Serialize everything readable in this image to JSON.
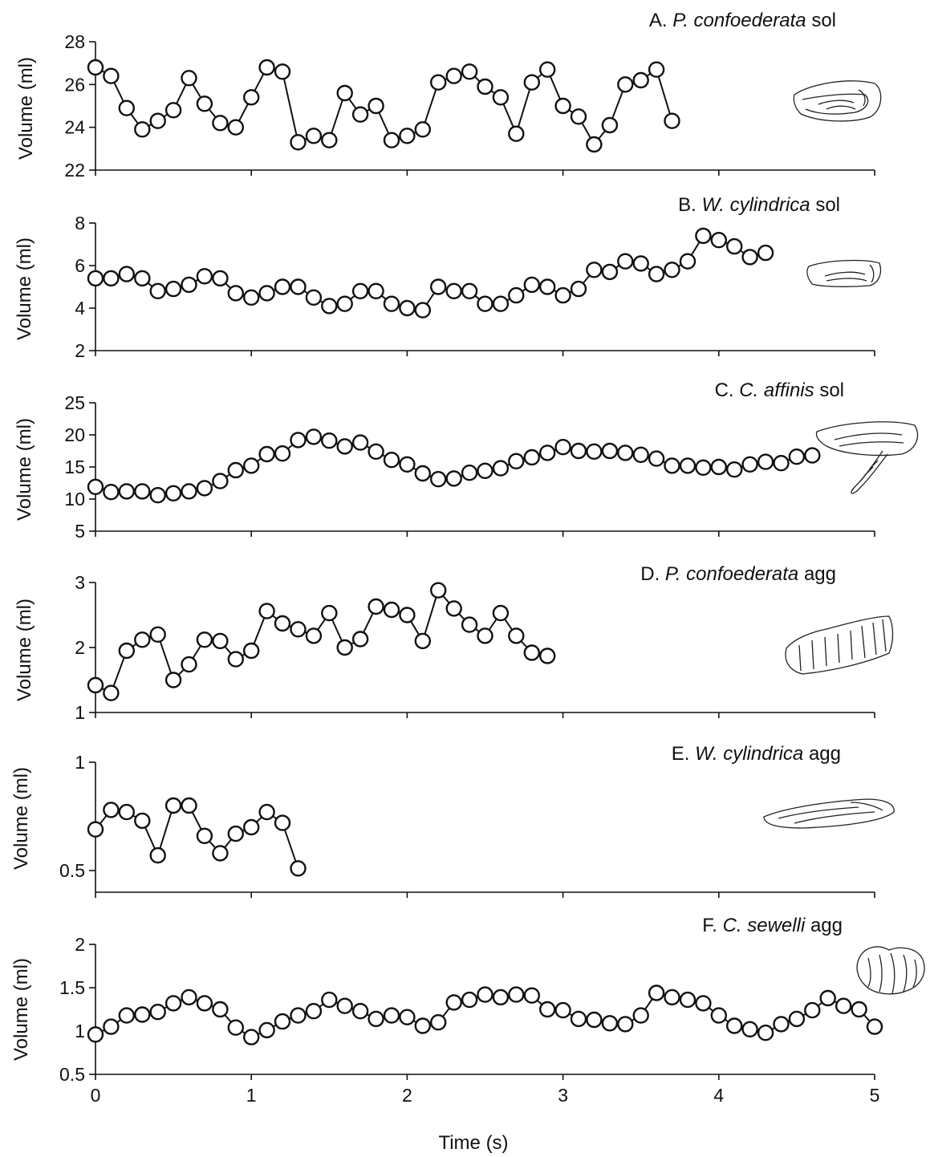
{
  "chart_data": [
    {
      "type": "line",
      "title": "A. P. confoederata sol",
      "title_parts": {
        "letter": "A.",
        "species": "P. confoederata",
        "suffix": "sol"
      },
      "ylabel": "Volume (ml)",
      "ylim": [
        22,
        28
      ],
      "yticks": [
        22,
        24,
        26,
        28
      ],
      "x": [
        0.0,
        0.1,
        0.2,
        0.3,
        0.4,
        0.5,
        0.6,
        0.7,
        0.8,
        0.9,
        1.0,
        1.1,
        1.2,
        1.3,
        1.4,
        1.5,
        1.6,
        1.7,
        1.8,
        1.9,
        2.0,
        2.1,
        2.2,
        2.3,
        2.4,
        2.5,
        2.6,
        2.7,
        2.8,
        2.9,
        3.0,
        3.1,
        3.2,
        3.3,
        3.4,
        3.5,
        3.6,
        3.7
      ],
      "values": [
        26.8,
        26.4,
        24.9,
        23.9,
        24.3,
        24.8,
        26.3,
        25.1,
        24.2,
        24.0,
        25.4,
        26.8,
        26.6,
        23.3,
        23.6,
        23.4,
        25.6,
        24.6,
        25.0,
        23.4,
        23.6,
        23.9,
        26.1,
        26.4,
        26.6,
        25.9,
        25.4,
        23.7,
        26.1,
        26.7,
        25.0,
        24.5,
        23.2,
        24.1,
        26.0,
        26.2,
        26.7,
        24.3
      ]
    },
    {
      "type": "line",
      "title": "B. W. cylindrica sol",
      "title_parts": {
        "letter": "B.",
        "species": "W. cylindrica",
        "suffix": "sol"
      },
      "ylabel": "Volume (ml)",
      "ylim": [
        2,
        8
      ],
      "yticks": [
        2,
        4,
        6,
        8
      ],
      "x": [
        0.0,
        0.1,
        0.2,
        0.3,
        0.4,
        0.5,
        0.6,
        0.7,
        0.8,
        0.9,
        1.0,
        1.1,
        1.2,
        1.3,
        1.4,
        1.5,
        1.6,
        1.7,
        1.8,
        1.9,
        2.0,
        2.1,
        2.2,
        2.3,
        2.4,
        2.5,
        2.6,
        2.7,
        2.8,
        2.9,
        3.0,
        3.1,
        3.2,
        3.3,
        3.4,
        3.5,
        3.6,
        3.7,
        3.8,
        3.9,
        4.0,
        4.1,
        4.2,
        4.3
      ],
      "values": [
        5.4,
        5.4,
        5.6,
        5.4,
        4.8,
        4.9,
        5.1,
        5.5,
        5.4,
        4.7,
        4.5,
        4.7,
        5.0,
        5.0,
        4.5,
        4.1,
        4.2,
        4.8,
        4.8,
        4.2,
        4.0,
        3.9,
        5.0,
        4.8,
        4.8,
        4.2,
        4.2,
        4.6,
        5.1,
        5.0,
        4.6,
        4.9,
        5.8,
        5.7,
        6.2,
        6.1,
        5.6,
        5.8,
        6.2,
        7.4,
        7.2,
        6.9,
        6.4,
        6.6
      ]
    },
    {
      "type": "line",
      "title": "C. C. affinis sol",
      "title_parts": {
        "letter": "C.",
        "species": "C. affinis",
        "suffix": "sol"
      },
      "ylabel": "Volume (ml)",
      "ylim": [
        5,
        25
      ],
      "yticks": [
        5,
        10,
        15,
        20,
        25
      ],
      "x": [
        0.0,
        0.1,
        0.2,
        0.3,
        0.4,
        0.5,
        0.6,
        0.7,
        0.8,
        0.9,
        1.0,
        1.1,
        1.2,
        1.3,
        1.4,
        1.5,
        1.6,
        1.7,
        1.8,
        1.9,
        2.0,
        2.1,
        2.2,
        2.3,
        2.4,
        2.5,
        2.6,
        2.7,
        2.8,
        2.9,
        3.0,
        3.1,
        3.2,
        3.3,
        3.4,
        3.5,
        3.6,
        3.7,
        3.8,
        3.9,
        4.0,
        4.1,
        4.2,
        4.3,
        4.4,
        4.5,
        4.6
      ],
      "values": [
        11.9,
        11.1,
        11.2,
        11.2,
        10.6,
        10.9,
        11.2,
        11.7,
        12.8,
        14.5,
        15.2,
        17.0,
        17.1,
        19.2,
        19.7,
        19.1,
        18.2,
        18.8,
        17.4,
        16.1,
        15.4,
        14.0,
        13.1,
        13.2,
        14.1,
        14.4,
        14.8,
        15.9,
        16.5,
        17.2,
        18.1,
        17.5,
        17.4,
        17.5,
        17.2,
        16.9,
        16.3,
        15.2,
        15.2,
        14.9,
        15.0,
        14.6,
        15.4,
        15.8,
        15.6,
        16.6,
        16.8
      ]
    },
    {
      "type": "line",
      "title": "D. P. confoederata agg",
      "title_parts": {
        "letter": "D.",
        "species": "P. confoederata",
        "suffix": "agg"
      },
      "ylabel": "Volume (ml)",
      "ylim": [
        1,
        3
      ],
      "yticks": [
        1,
        2,
        3
      ],
      "x": [
        0.0,
        0.1,
        0.2,
        0.3,
        0.4,
        0.5,
        0.6,
        0.7,
        0.8,
        0.9,
        1.0,
        1.1,
        1.2,
        1.3,
        1.4,
        1.5,
        1.6,
        1.7,
        1.8,
        1.9,
        2.0,
        2.1,
        2.2,
        2.3,
        2.4,
        2.5,
        2.6,
        2.7,
        2.8,
        2.9
      ],
      "values": [
        1.42,
        1.3,
        1.95,
        2.12,
        2.2,
        1.5,
        1.74,
        2.12,
        2.1,
        1.82,
        1.95,
        2.56,
        2.37,
        2.28,
        2.18,
        2.53,
        2.0,
        2.13,
        2.63,
        2.58,
        2.5,
        2.1,
        2.88,
        2.6,
        2.35,
        2.18,
        2.53,
        2.18,
        1.92,
        1.87
      ]
    },
    {
      "type": "line",
      "title": "E. W. cylindrica agg",
      "title_parts": {
        "letter": "E.",
        "species": "W. cylindrica",
        "suffix": "agg"
      },
      "ylabel": "Volume (ml)",
      "ylim": [
        0.4,
        1.0
      ],
      "yticks": [
        0.5,
        1
      ],
      "ytick_labels": [
        "0.5",
        "1"
      ],
      "x": [
        0.0,
        0.1,
        0.2,
        0.3,
        0.4,
        0.5,
        0.6,
        0.7,
        0.8,
        0.9,
        1.0,
        1.1,
        1.2,
        1.3
      ],
      "values": [
        0.69,
        0.78,
        0.77,
        0.73,
        0.57,
        0.8,
        0.8,
        0.66,
        0.58,
        0.67,
        0.7,
        0.77,
        0.72,
        0.51
      ]
    },
    {
      "type": "line",
      "title": "F. C. sewelli agg",
      "title_parts": {
        "letter": "F.",
        "species": "C. sewelli",
        "suffix": "agg"
      },
      "ylabel": "Volume (ml)",
      "xlabel": "Time (s)",
      "xlim": [
        0,
        5
      ],
      "xticks": [
        0,
        1,
        2,
        3,
        4,
        5
      ],
      "ylim": [
        0.5,
        2.0
      ],
      "yticks": [
        0.5,
        1,
        1.5,
        2
      ],
      "ytick_labels": [
        "0.5",
        "1",
        "1.5",
        "2"
      ],
      "x": [
        0.0,
        0.1,
        0.2,
        0.3,
        0.4,
        0.5,
        0.6,
        0.7,
        0.8,
        0.9,
        1.0,
        1.1,
        1.2,
        1.3,
        1.4,
        1.5,
        1.6,
        1.7,
        1.8,
        1.9,
        2.0,
        2.1,
        2.2,
        2.3,
        2.4,
        2.5,
        2.6,
        2.7,
        2.8,
        2.9,
        3.0,
        3.1,
        3.2,
        3.3,
        3.4,
        3.5,
        3.6,
        3.7,
        3.8,
        3.9,
        4.0,
        4.1,
        4.2,
        4.3,
        4.4,
        4.5,
        4.6,
        4.7,
        4.8,
        4.9,
        5.0
      ],
      "values": [
        0.96,
        1.05,
        1.18,
        1.19,
        1.22,
        1.32,
        1.39,
        1.32,
        1.25,
        1.04,
        0.93,
        1.01,
        1.11,
        1.18,
        1.23,
        1.36,
        1.29,
        1.23,
        1.14,
        1.18,
        1.16,
        1.06,
        1.1,
        1.33,
        1.36,
        1.42,
        1.39,
        1.42,
        1.41,
        1.25,
        1.24,
        1.14,
        1.13,
        1.09,
        1.08,
        1.18,
        1.44,
        1.39,
        1.36,
        1.32,
        1.18,
        1.06,
        1.02,
        0.98,
        1.08,
        1.14,
        1.24,
        1.38,
        1.29,
        1.25,
        1.05
      ]
    }
  ]
}
